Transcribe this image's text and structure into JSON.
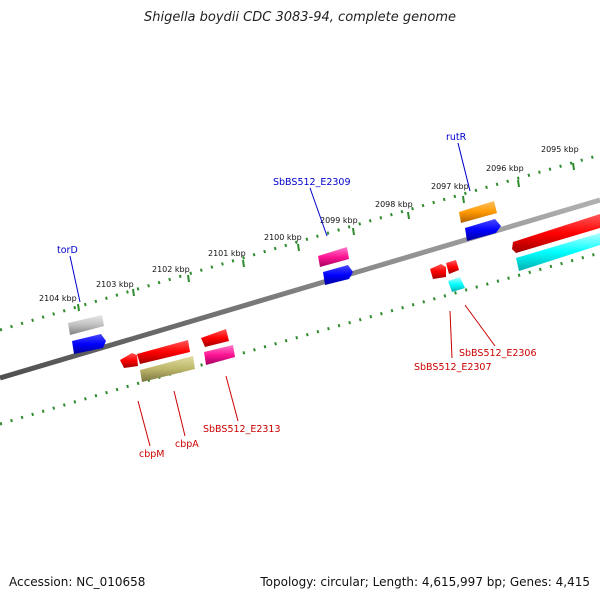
{
  "title": "Shigella boydii CDC 3083-94, complete genome",
  "footer": {
    "accession": "Accession: NC_010658",
    "topology": "Topology: circular; Length: 4,615,997 bp; Genes: 4,415"
  },
  "ticks": [
    "2095 kbp",
    "2096 kbp",
    "2097 kbp",
    "2098 kbp",
    "2099 kbp",
    "2100 kbp",
    "2101 kbp",
    "2102 kbp",
    "2103 kbp",
    "2104 kbp"
  ],
  "gene_labels": {
    "rutR": "rutR",
    "SbBS512_E2309": "SbBS512_E2309",
    "torD": "torD",
    "SbBS512_E2306": "SbBS512_E2306",
    "SbBS512_E2307": "SbBS512_E2307",
    "SbBS512_E2313": "SbBS512_E2313",
    "cbpA": "cbpA",
    "cbpM": "cbpM"
  },
  "colors": {
    "forward_label": "#0000cc",
    "reverse_label": "#cc0000",
    "scale_dots": "#2e8b2e",
    "backbone": "#808080"
  }
}
